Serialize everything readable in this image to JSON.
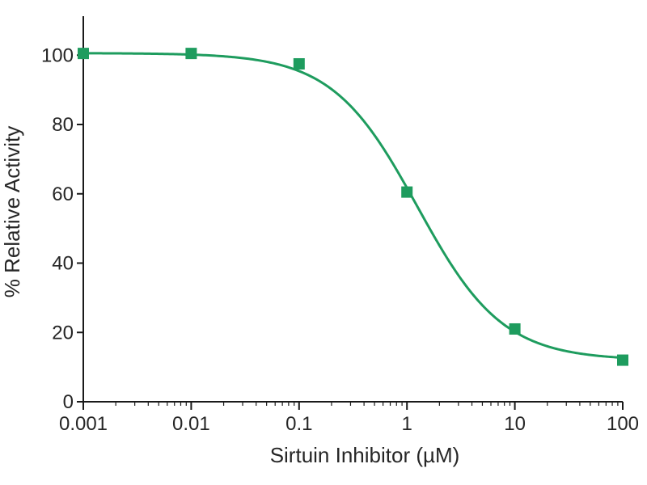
{
  "chart_data": {
    "type": "scatter",
    "title": "",
    "xlabel": "Sirtuin Inhibitor (µM)",
    "ylabel": "% Relative Activity",
    "x_scale": "log",
    "xlim": [
      0.001,
      100
    ],
    "ylim": [
      0,
      110
    ],
    "xticks": [
      0.001,
      0.01,
      0.1,
      1,
      10,
      100
    ],
    "xtick_labels": [
      "0.001",
      "0.01",
      "0.1",
      "1",
      "10",
      "100"
    ],
    "yticks": [
      0,
      20,
      40,
      60,
      80,
      100
    ],
    "ytick_labels": [
      "0",
      "20",
      "40",
      "60",
      "80",
      "100"
    ],
    "grid": false,
    "legend": "none",
    "series": [
      {
        "marker": "square",
        "color": "#1e9c5e",
        "x": [
          0.001,
          0.01,
          0.1,
          1,
          10,
          100
        ],
        "y": [
          100.5,
          100.5,
          97.5,
          60.5,
          21,
          12
        ],
        "fit": {
          "model": "four-parameter logistic",
          "bottom": 12,
          "top": 100.6,
          "ic50": 1.25,
          "hill": 1.1
        }
      }
    ]
  }
}
